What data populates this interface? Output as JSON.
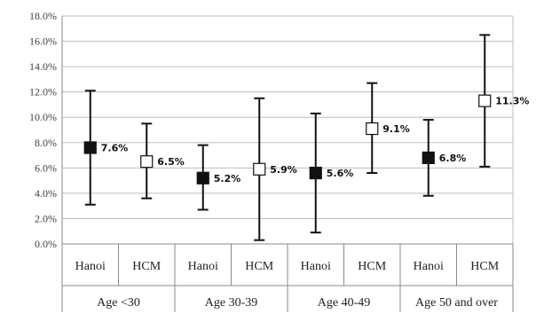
{
  "chart_data": {
    "type": "scatter",
    "title": "",
    "xlabel": "",
    "ylabel": "",
    "ylim": [
      0,
      18
    ],
    "y_ticks": [
      "0.0%",
      "2.0%",
      "4.0%",
      "6.0%",
      "8.0%",
      "10.0%",
      "12.0%",
      "14.0%",
      "16.0%",
      "18.0%"
    ],
    "grid": true,
    "groups": [
      "Age <30",
      "Age 30-39",
      "Age 40-49",
      "Age 50 and over"
    ],
    "categories": [
      "Hanoi",
      "HCM",
      "Hanoi",
      "HCM",
      "Hanoi",
      "HCM",
      "Hanoi",
      "HCM"
    ],
    "series": [
      {
        "marker_color": "#111111",
        "points": [
          {
            "group": "Age <30",
            "category": "Hanoi",
            "value": 7.6,
            "low": 3.1,
            "high": 12.1,
            "label": "7.6%"
          },
          {
            "group": "Age 30-39",
            "category": "Hanoi",
            "value": 5.2,
            "low": 2.7,
            "high": 7.8,
            "label": "5.2%"
          },
          {
            "group": "Age 40-49",
            "category": "Hanoi",
            "value": 5.6,
            "low": 0.9,
            "high": 10.3,
            "label": "5.6%"
          },
          {
            "group": "Age 50 and over",
            "category": "Hanoi",
            "value": 6.8,
            "low": 3.8,
            "high": 9.8,
            "label": "6.8%"
          }
        ]
      },
      {
        "marker_color": "#ffffff",
        "points": [
          {
            "group": "Age <30",
            "category": "HCM",
            "value": 6.5,
            "low": 3.6,
            "high": 9.5,
            "label": "6.5%"
          },
          {
            "group": "Age 30-39",
            "category": "HCM",
            "value": 5.9,
            "low": 0.3,
            "high": 11.5,
            "label": "5.9%"
          },
          {
            "group": "Age 40-49",
            "category": "HCM",
            "value": 9.1,
            "low": 5.6,
            "high": 12.7,
            "label": "9.1%"
          },
          {
            "group": "Age 50 and over",
            "category": "HCM",
            "value": 11.3,
            "low": 6.1,
            "high": 16.5,
            "label": "11.3%"
          }
        ]
      }
    ]
  }
}
